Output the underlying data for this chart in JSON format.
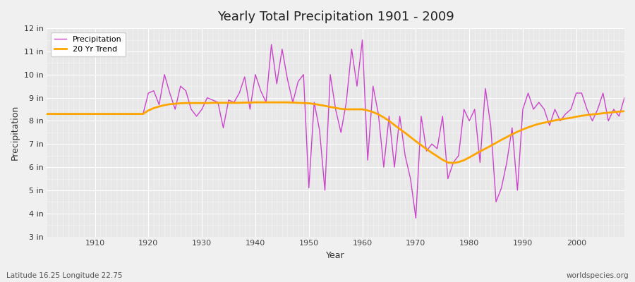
{
  "title": "Yearly Total Precipitation 1901 - 2009",
  "xlabel": "Year",
  "ylabel": "Precipitation",
  "subtitle_left": "Latitude 16.25 Longitude 22.75",
  "subtitle_right": "worldspecies.org",
  "line_color": "#cc44cc",
  "trend_color": "#FFA500",
  "bg_color": "#f0f0f0",
  "plot_bg_color": "#e8e8e8",
  "grid_color": "#ffffff",
  "ylim": [
    3,
    12
  ],
  "yticks": [
    3,
    4,
    5,
    6,
    7,
    8,
    9,
    10,
    11,
    12
  ],
  "xlim": [
    1901,
    2009
  ],
  "xticks": [
    1910,
    1920,
    1930,
    1940,
    1950,
    1960,
    1970,
    1980,
    1990,
    2000
  ],
  "years": [
    1901,
    1902,
    1903,
    1904,
    1905,
    1906,
    1907,
    1908,
    1909,
    1910,
    1911,
    1912,
    1913,
    1914,
    1915,
    1916,
    1917,
    1918,
    1919,
    1920,
    1921,
    1922,
    1923,
    1924,
    1925,
    1926,
    1927,
    1928,
    1929,
    1930,
    1931,
    1932,
    1933,
    1934,
    1935,
    1936,
    1937,
    1938,
    1939,
    1940,
    1941,
    1942,
    1943,
    1944,
    1945,
    1946,
    1947,
    1948,
    1949,
    1950,
    1951,
    1952,
    1953,
    1954,
    1955,
    1956,
    1957,
    1958,
    1959,
    1960,
    1961,
    1962,
    1963,
    1964,
    1965,
    1966,
    1967,
    1968,
    1969,
    1970,
    1971,
    1972,
    1973,
    1974,
    1975,
    1976,
    1977,
    1978,
    1979,
    1980,
    1981,
    1982,
    1983,
    1984,
    1985,
    1986,
    1987,
    1988,
    1989,
    1990,
    1991,
    1992,
    1993,
    1994,
    1995,
    1996,
    1997,
    1998,
    1999,
    2000,
    2001,
    2002,
    2003,
    2004,
    2005,
    2006,
    2007,
    2008,
    2009
  ],
  "precip": [
    8.3,
    8.3,
    8.3,
    8.3,
    8.3,
    8.3,
    8.3,
    8.3,
    8.3,
    8.3,
    8.3,
    8.3,
    8.3,
    8.3,
    8.3,
    8.3,
    8.3,
    8.3,
    8.3,
    9.2,
    9.3,
    8.7,
    10.0,
    9.2,
    8.5,
    9.5,
    9.3,
    8.5,
    8.2,
    8.5,
    9.0,
    8.9,
    8.8,
    7.7,
    8.9,
    8.8,
    9.2,
    9.9,
    8.5,
    10.0,
    9.3,
    8.8,
    11.3,
    9.6,
    11.1,
    9.8,
    8.8,
    9.7,
    10.0,
    5.1,
    8.8,
    7.6,
    5.0,
    10.0,
    8.5,
    7.5,
    8.8,
    11.1,
    9.5,
    11.5,
    6.3,
    9.5,
    8.3,
    6.0,
    8.2,
    6.0,
    8.2,
    6.5,
    5.5,
    3.8,
    8.2,
    6.7,
    7.0,
    6.8,
    8.2,
    5.5,
    6.2,
    6.5,
    8.5,
    8.0,
    8.5,
    6.2,
    9.4,
    7.8,
    4.5,
    5.1,
    6.2,
    7.7,
    5.0,
    8.5,
    9.2,
    8.5,
    8.8,
    8.5,
    7.8,
    8.5,
    8.0,
    8.3,
    8.5,
    9.2,
    9.2,
    8.5,
    8.0,
    8.5,
    9.2,
    8.0,
    8.5,
    8.2,
    9.0
  ],
  "trend_data": [
    8.3,
    8.3,
    8.3,
    8.3,
    8.3,
    8.3,
    8.3,
    8.3,
    8.3,
    8.3,
    8.3,
    8.3,
    8.3,
    8.3,
    8.3,
    8.3,
    8.3,
    8.3,
    8.3,
    8.45,
    8.55,
    8.62,
    8.68,
    8.72,
    8.74,
    8.76,
    8.77,
    8.77,
    8.77,
    8.77,
    8.77,
    8.78,
    8.78,
    8.78,
    8.78,
    8.78,
    8.78,
    8.79,
    8.79,
    8.8,
    8.8,
    8.8,
    8.8,
    8.8,
    8.8,
    8.8,
    8.79,
    8.78,
    8.77,
    8.76,
    8.73,
    8.69,
    8.65,
    8.6,
    8.56,
    8.52,
    8.5,
    8.5,
    8.5,
    8.5,
    8.45,
    8.38,
    8.28,
    8.15,
    8.0,
    7.82,
    7.65,
    7.48,
    7.3,
    7.12,
    6.95,
    6.78,
    6.62,
    6.47,
    6.32,
    6.2,
    6.18,
    6.22,
    6.3,
    6.42,
    6.55,
    6.68,
    6.8,
    6.92,
    7.05,
    7.18,
    7.3,
    7.42,
    7.53,
    7.63,
    7.72,
    7.8,
    7.87,
    7.92,
    7.97,
    8.02,
    8.06,
    8.1,
    8.13,
    8.18,
    8.22,
    8.25,
    8.28,
    8.3,
    8.33,
    8.35,
    8.38,
    8.4,
    8.42
  ]
}
